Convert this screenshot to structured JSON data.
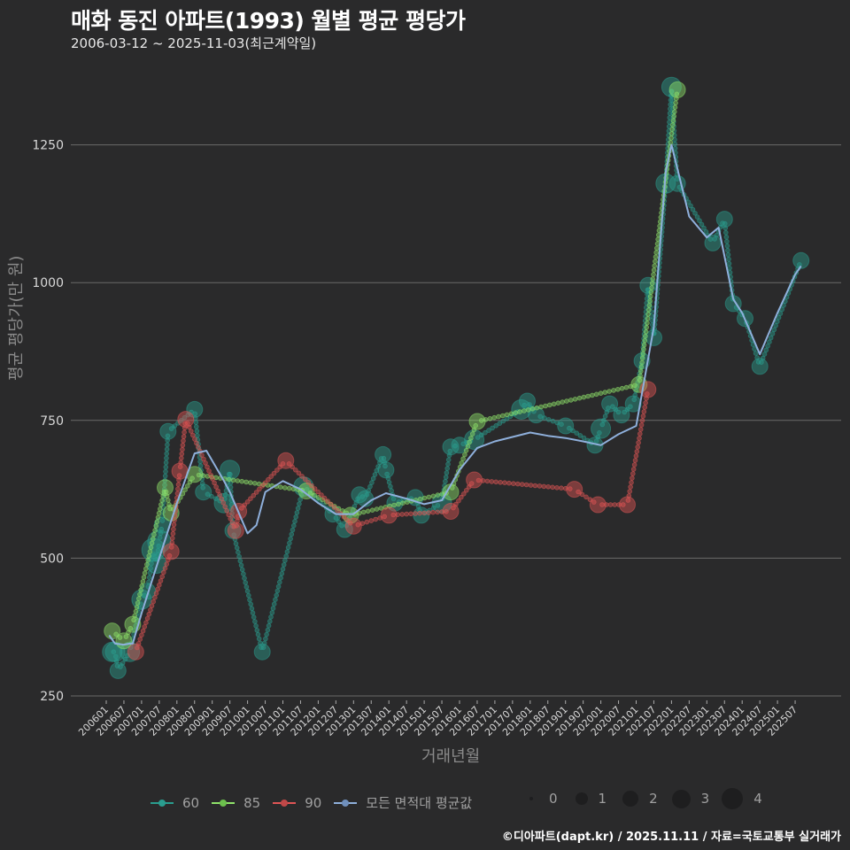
{
  "header": {
    "title": "매화 동진 아파트(1993) 월별 평균 평당가",
    "subtitle": "2006-03-12 ~ 2025-11-03(최근계약일)"
  },
  "axes": {
    "ylabel": "평균 평당가(만 원)",
    "xlabel": "거래년월"
  },
  "legend": {
    "series": [
      {
        "label": "60",
        "color": "#2a9d8f"
      },
      {
        "label": "85",
        "color": "#8fe36a"
      },
      {
        "label": "90",
        "color": "#e05555"
      },
      {
        "label": "모든 면적대 평균값",
        "color": "#8fb0dc"
      }
    ],
    "sizes": [
      {
        "label": "0",
        "r": 2
      },
      {
        "label": "1",
        "r": 7
      },
      {
        "label": "2",
        "r": 9
      },
      {
        "label": "3",
        "r": 11
      },
      {
        "label": "4",
        "r": 13
      }
    ]
  },
  "footer": "©디아파트(dapt.kr) / 2025.11.11 / 자료=국토교통부 실거래가",
  "chart_data": {
    "type": "scatter",
    "title": "매화 동진 아파트(1993) 월별 평균 평당가",
    "subtitle": "2006-03-12 ~ 2025-11-03(최근계약일)",
    "xlabel": "거래년월",
    "ylabel": "평균 평당가(만 원)",
    "ylim": [
      250,
      1370
    ],
    "yticks": [
      250,
      500,
      750,
      1000,
      1250
    ],
    "xticks": [
      "200601",
      "200607",
      "200701",
      "200707",
      "200801",
      "200807",
      "200901",
      "200907",
      "201001",
      "201007",
      "201101",
      "201107",
      "201201",
      "201207",
      "201301",
      "201307",
      "201401",
      "201407",
      "201501",
      "201507",
      "201601",
      "201607",
      "201701",
      "201707",
      "201801",
      "201807",
      "201901",
      "201907",
      "202001",
      "202007",
      "202101",
      "202107",
      "202201",
      "202207",
      "202301",
      "202307",
      "202401",
      "202407",
      "202501",
      "202507"
    ],
    "grid": true,
    "legend_position": "bottom",
    "size_legend": [
      0,
      1,
      2,
      3,
      4
    ],
    "series": [
      {
        "name": "60",
        "color": "#2a9d8f",
        "points": [
          [
            "200603",
            330,
            3
          ],
          [
            "200604",
            330,
            3
          ],
          [
            "200605",
            296,
            2
          ],
          [
            "200609",
            330,
            3
          ],
          [
            "200701",
            425,
            3
          ],
          [
            "200703",
            440,
            2
          ],
          [
            "200705",
            515,
            4
          ],
          [
            "200706",
            490,
            3
          ],
          [
            "200707",
            530,
            4
          ],
          [
            "200708",
            560,
            2
          ],
          [
            "200710",
            730,
            2
          ],
          [
            "200807",
            770,
            2
          ],
          [
            "200810",
            620,
            2
          ],
          [
            "200905",
            600,
            3
          ],
          [
            "200907",
            660,
            3
          ],
          [
            "200908",
            550,
            2
          ],
          [
            "201006",
            330,
            2
          ],
          [
            "201108",
            630,
            3
          ],
          [
            "201206",
            580,
            2
          ],
          [
            "201210",
            552,
            2
          ],
          [
            "201303",
            615,
            2
          ],
          [
            "201305",
            608,
            2
          ],
          [
            "201311",
            688,
            2
          ],
          [
            "201312",
            660,
            2
          ],
          [
            "201403",
            600,
            2
          ],
          [
            "201410",
            610,
            2
          ],
          [
            "201412",
            578,
            2
          ],
          [
            "201507",
            600,
            3
          ],
          [
            "201510",
            702,
            2
          ],
          [
            "201601",
            705,
            2
          ],
          [
            "201606",
            715,
            3
          ],
          [
            "201710",
            770,
            3
          ],
          [
            "201712",
            785,
            2
          ],
          [
            "201803",
            760,
            2
          ],
          [
            "201901",
            740,
            2
          ],
          [
            "201911",
            705,
            2
          ],
          [
            "202001",
            735,
            3
          ],
          [
            "202004",
            780,
            2
          ],
          [
            "202008",
            760,
            2
          ],
          [
            "202012",
            780,
            2
          ],
          [
            "202103",
            858,
            2
          ],
          [
            "202105",
            995,
            2
          ],
          [
            "202107",
            900,
            2
          ],
          [
            "202111",
            1180,
            3
          ],
          [
            "202201",
            1355,
            3
          ],
          [
            "202203",
            1180,
            2
          ],
          [
            "202303",
            1072,
            2
          ],
          [
            "202307",
            1115,
            2
          ],
          [
            "202310",
            962,
            2
          ],
          [
            "202402",
            935,
            2
          ],
          [
            "202407",
            848,
            2
          ],
          [
            "202509",
            1040,
            2
          ]
        ]
      },
      {
        "name": "85",
        "color": "#8fe36a",
        "points": [
          [
            "200603",
            368,
            2
          ],
          [
            "200607",
            350,
            2
          ],
          [
            "200610",
            380,
            2
          ],
          [
            "200709",
            628,
            2
          ],
          [
            "200711",
            582,
            2
          ],
          [
            "200807",
            652,
            2
          ],
          [
            "201109",
            622,
            2
          ],
          [
            "201212",
            578,
            2
          ],
          [
            "201510",
            620,
            2
          ],
          [
            "201607",
            748,
            2
          ],
          [
            "202102",
            815,
            2
          ],
          [
            "202203",
            1350,
            2
          ]
        ]
      },
      {
        "name": "90",
        "color": "#e05555",
        "points": [
          [
            "200611",
            330,
            2
          ],
          [
            "200711",
            512,
            2
          ],
          [
            "200802",
            658,
            2
          ],
          [
            "200804",
            752,
            2
          ],
          [
            "200909",
            550,
            2
          ],
          [
            "200910",
            585,
            2
          ],
          [
            "201102",
            677,
            2
          ],
          [
            "201301",
            558,
            2
          ],
          [
            "201401",
            578,
            2
          ],
          [
            "201510",
            585,
            2
          ],
          [
            "201606",
            642,
            2
          ],
          [
            "201904",
            625,
            2
          ],
          [
            "201912",
            597,
            2
          ],
          [
            "202010",
            597,
            2
          ],
          [
            "202105",
            806,
            2
          ]
        ]
      },
      {
        "name": "모든 면적대 평균값",
        "color": "#8fb0dc",
        "type": "line",
        "points": [
          [
            "200602",
            360
          ],
          [
            "200604",
            345
          ],
          [
            "200607",
            343
          ],
          [
            "200609",
            345
          ],
          [
            "200610",
            345
          ],
          [
            "200701",
            400
          ],
          [
            "200707",
            500
          ],
          [
            "200801",
            600
          ],
          [
            "200807",
            690
          ],
          [
            "200811",
            695
          ],
          [
            "200905",
            640
          ],
          [
            "200907",
            620
          ],
          [
            "201001",
            545
          ],
          [
            "201004",
            560
          ],
          [
            "201007",
            620
          ],
          [
            "201101",
            640
          ],
          [
            "201107",
            625
          ],
          [
            "201201",
            600
          ],
          [
            "201207",
            580
          ],
          [
            "201301",
            580
          ],
          [
            "201307",
            605
          ],
          [
            "201312",
            618
          ],
          [
            "201407",
            608
          ],
          [
            "201501",
            598
          ],
          [
            "201507",
            605
          ],
          [
            "201601",
            660
          ],
          [
            "201607",
            700
          ],
          [
            "201701",
            712
          ],
          [
            "201801",
            728
          ],
          [
            "201807",
            722
          ],
          [
            "201901",
            718
          ],
          [
            "201907",
            712
          ],
          [
            "202001",
            705
          ],
          [
            "202007",
            725
          ],
          [
            "202101",
            740
          ],
          [
            "202107",
            920
          ],
          [
            "202111",
            1200
          ],
          [
            "202201",
            1250
          ],
          [
            "202207",
            1120
          ],
          [
            "202301",
            1082
          ],
          [
            "202305",
            1100
          ],
          [
            "202310",
            970
          ],
          [
            "202401",
            945
          ],
          [
            "202407",
            870
          ],
          [
            "202501",
            945
          ],
          [
            "202507",
            1015
          ],
          [
            "202509",
            1030
          ]
        ]
      }
    ]
  }
}
